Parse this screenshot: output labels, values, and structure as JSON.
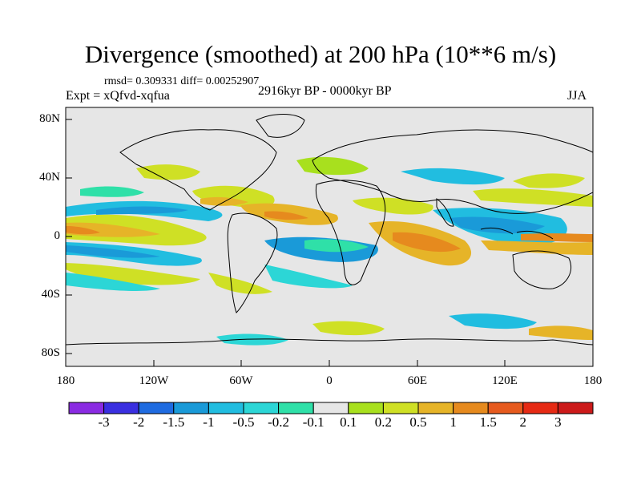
{
  "map": {
    "title": "Divergence (smoothed) at 200 hPa (10**6 m/s)",
    "stats": "rmsd= 0.309331 diff= 0.00252907",
    "experiment": "Expt = xQfvd-xqfua",
    "period": "2916kyr BP - 0000kyr BP",
    "season": "JJA",
    "lat_labels": [
      "80N",
      "40N",
      "0",
      "40S",
      "80S"
    ],
    "lon_labels": [
      "180",
      "120W",
      "60W",
      "0",
      "60E",
      "120E",
      "180"
    ]
  },
  "colorbar": {
    "labels": [
      "-3",
      "-2",
      "-1.5",
      "-1",
      "-0.5",
      "-0.2",
      "-0.1",
      "0.1",
      "0.2",
      "0.5",
      "1",
      "1.5",
      "2",
      "3"
    ],
    "colors": [
      "#8a2be2",
      "#3a2fe0",
      "#1f6be0",
      "#1a9ad8",
      "#21bde0",
      "#2cd6d6",
      "#2fe0a8",
      "#e6e6e6",
      "#a8e01e",
      "#cfe025",
      "#e6b428",
      "#e68a1e",
      "#e65a1e",
      "#e62a14",
      "#cc1a1a"
    ]
  },
  "field_colors": {
    "neg_strong": "#1a9ad8",
    "neg_mid": "#21bde0",
    "neg_weak": "#2fe0a8",
    "pos_weak": "#a8e01e",
    "pos_mid": "#e6b428",
    "pos_strong": "#e68a1e",
    "background": "#e6e6e6"
  }
}
